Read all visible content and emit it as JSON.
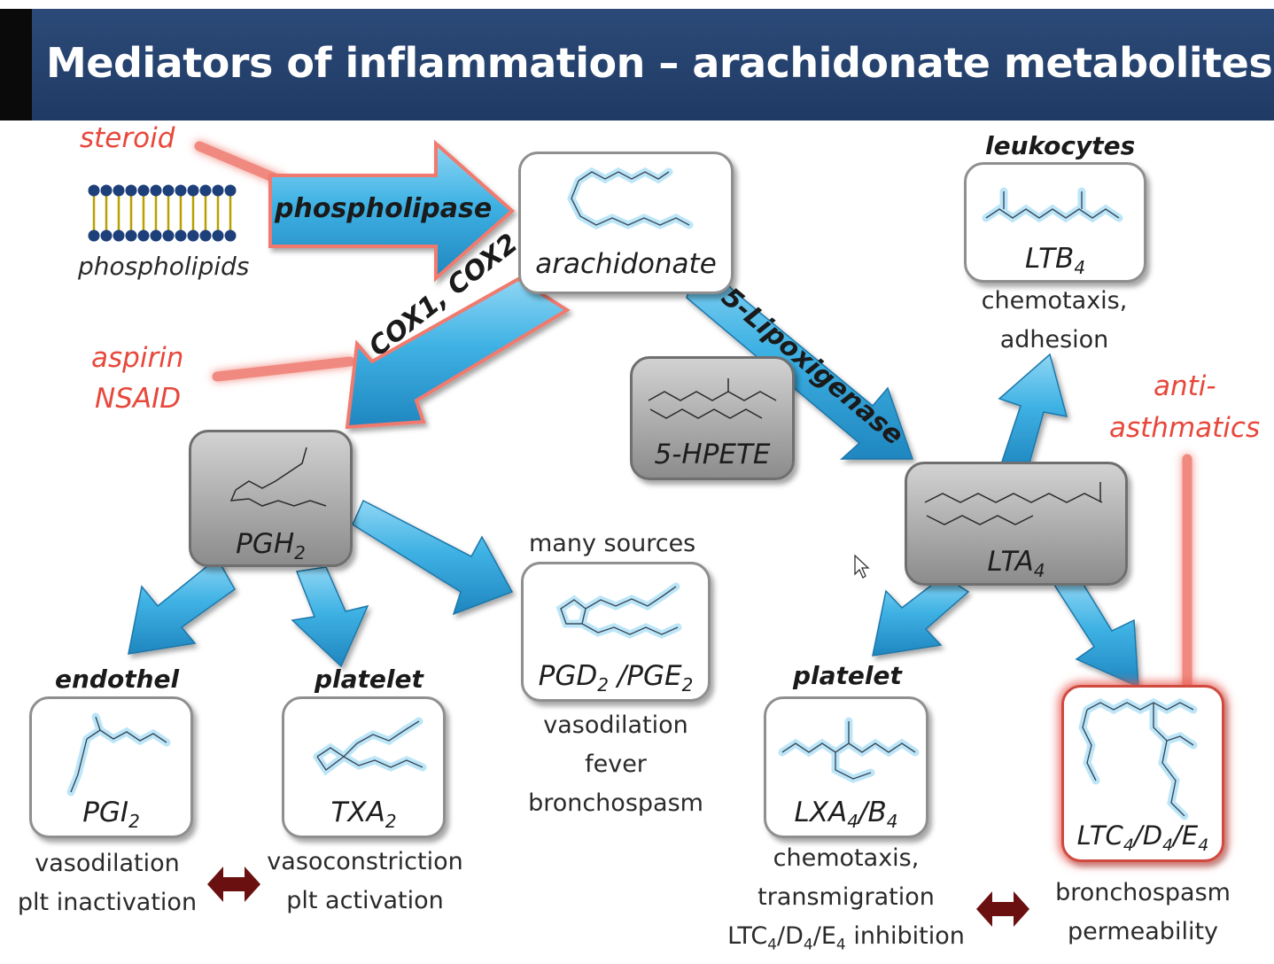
{
  "title": "Mediators of inflammation – arachidonate metabolites",
  "inhibitors": {
    "steroid": "steroid",
    "aspirin": "aspirin",
    "nsaid": "NSAID",
    "anti_asthmatics_1": "anti-",
    "anti_asthmatics_2": "asthmatics"
  },
  "enzymes": {
    "phospholipase": "phospholipase",
    "cox": "COX1, COX2",
    "lipoxygenase": "5-Lipoxigenase"
  },
  "nodes": {
    "phospholipids": "phospholipids",
    "arachidonate": "arachidonate",
    "hpete": "5-HPETE",
    "pgh2": {
      "base": "PGH",
      "sub": "2"
    },
    "lta4": {
      "base": "LTA",
      "sub": "4"
    },
    "ltb4": {
      "base": "LTB",
      "sub": "4"
    },
    "pgi2": {
      "base": "PGI",
      "sub": "2"
    },
    "txa2": {
      "base": "TXA",
      "sub": "2"
    },
    "pgd2": {
      "a": "PGD",
      "a_sub": "2",
      "sep": " /",
      "b": "PGE",
      "b_sub": "2"
    },
    "lxa4": {
      "a": "LXA",
      "a_sub": "4",
      "sep": "/",
      "b": "B",
      "b_sub": "4"
    },
    "ltc4": {
      "a": "LTC",
      "a_sub": "4",
      "sep1": "/",
      "b": "D",
      "b_sub": "4",
      "sep2": "/",
      "c": "E",
      "c_sub": "4"
    }
  },
  "sources": {
    "leukocytes": "leukocytes",
    "endothel": "endothel",
    "platelet_left": "platelet",
    "platelet_right": "platelet",
    "many_sources": "many sources"
  },
  "effects": {
    "ltb4_1": "chemotaxis,",
    "ltb4_2": "adhesion",
    "pgd_1": "vasodilation",
    "pgd_2": "fever",
    "pgd_3": "bronchospasm",
    "pgi_1": "vasodilation",
    "pgi_2": "plt inactivation",
    "txa_1": "vasoconstriction",
    "txa_2": "plt activation",
    "lxa_1": "chemotaxis,",
    "lxa_2": "transmigration",
    "lxa_3": {
      "a": "LTC",
      "a_sub": "4",
      "sep1": "/",
      "b": "D",
      "b_sub": "4",
      "sep2": "/",
      "c": "E",
      "c_sub": "4",
      "tail": " inhibition"
    },
    "ltc_1": "bronchospasm",
    "ltc_2": "permeability"
  },
  "colors": {
    "header": "#1f3a64",
    "arrow": "#3aaee0",
    "inhibitor": "#e8473b",
    "double_arrow": "#6b1010"
  }
}
